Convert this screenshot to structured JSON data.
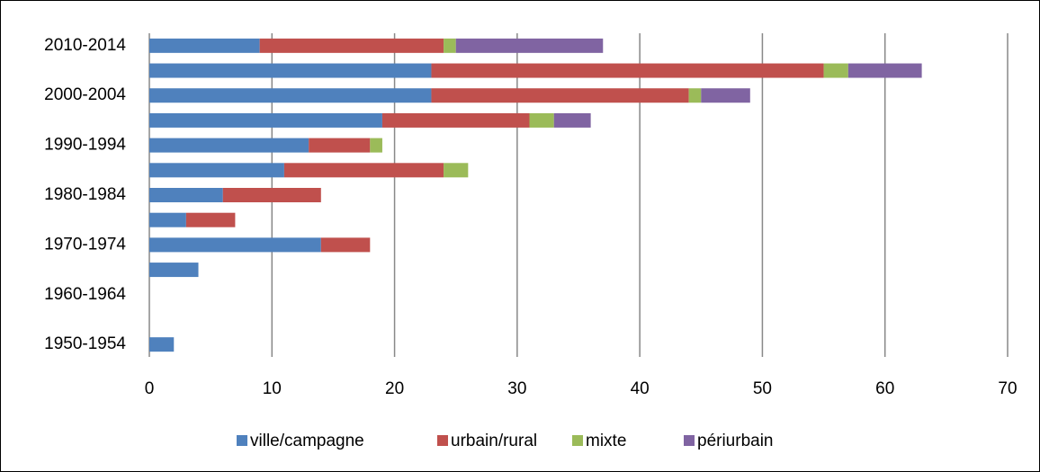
{
  "chart_data": {
    "type": "stacked_bar_horizontal",
    "categories": [
      "1950-1954",
      null,
      "1960-1964",
      null,
      "1970-1974",
      null,
      "1980-1984",
      null,
      "1990-1994",
      null,
      "2000-2004",
      null,
      "2010-2014"
    ],
    "series": [
      {
        "name": "ville/campagne",
        "color": "#4f81bd",
        "values": [
          2,
          0,
          0,
          4,
          14,
          3,
          6,
          11,
          13,
          19,
          23,
          23,
          9
        ]
      },
      {
        "name": "urbain/rural",
        "color": "#c0504d",
        "values": [
          0,
          0,
          0,
          0,
          4,
          4,
          8,
          13,
          5,
          12,
          21,
          32,
          15
        ]
      },
      {
        "name": "mixte",
        "color": "#9bbb59",
        "values": [
          0,
          0,
          0,
          0,
          0,
          0,
          0,
          2,
          1,
          2,
          1,
          2,
          1
        ]
      },
      {
        "name": "périurbain",
        "color": "#8064a2",
        "values": [
          0,
          0,
          0,
          0,
          0,
          0,
          0,
          0,
          0,
          3,
          4,
          6,
          12
        ]
      }
    ],
    "xlim": [
      0,
      70
    ],
    "xticks": [
      0,
      10,
      20,
      30,
      40,
      50,
      60,
      70
    ],
    "grid": true,
    "legend": "bottom"
  }
}
